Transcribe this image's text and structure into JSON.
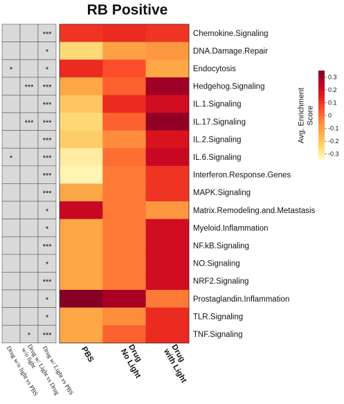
{
  "chart_data": {
    "type": "heatmap",
    "title": "RB Positive",
    "columns": [
      "PBS",
      "Drug\nNo Light",
      "Drug\nwith Light"
    ],
    "rows": [
      "Chemokine.Signaling",
      "DNA.Damage.Repair",
      "Endocytosis",
      "Hedgehog.Signaling",
      "IL.1.Signaling",
      "IL.17.Signaling",
      "IL.2.Signaling",
      "IL.6.Signaling",
      "Interferon.Response.Genes",
      "MAPK.Signaling",
      "Matrix.Remodeling.and.Metastasis",
      "Myeloid.Inflammation",
      "NF.kB.Signaling",
      "NO.Signaling",
      "NRF2.Signaling",
      "Prostaglandin.Inflammation",
      "TLR.Signaling",
      "TNF.Signaling"
    ],
    "values": [
      [
        0.1,
        0.12,
        0.1
      ],
      [
        -0.25,
        -0.1,
        -0.08
      ],
      [
        0.12,
        0.05,
        -0.12
      ],
      [
        -0.12,
        0.02,
        0.3
      ],
      [
        -0.2,
        0.12,
        0.2
      ],
      [
        -0.25,
        0.02,
        0.32
      ],
      [
        -0.22,
        -0.05,
        0.18
      ],
      [
        -0.3,
        0.0,
        0.22
      ],
      [
        -0.32,
        -0.02,
        0.1
      ],
      [
        -0.12,
        -0.02,
        0.1
      ],
      [
        0.22,
        -0.02,
        -0.08
      ],
      [
        -0.12,
        -0.02,
        0.2
      ],
      [
        -0.12,
        -0.02,
        0.2
      ],
      [
        -0.12,
        -0.02,
        0.2
      ],
      [
        -0.12,
        -0.02,
        0.2
      ],
      [
        0.34,
        0.28,
        -0.02
      ],
      [
        -0.12,
        -0.05,
        0.12
      ],
      [
        -0.12,
        0.02,
        0.12
      ]
    ],
    "comparisons": [
      "Drug w/o light vs PBS",
      "Drug w/ Light vs Drug\nw/o light",
      "Drug w/ Light vs PBS"
    ],
    "significance": [
      [
        "",
        "",
        "***"
      ],
      [
        "",
        "",
        "*"
      ],
      [
        "*",
        "",
        "*"
      ],
      [
        "",
        "***",
        "***"
      ],
      [
        "",
        "",
        "***"
      ],
      [
        "",
        "***",
        "***"
      ],
      [
        "",
        "",
        "***"
      ],
      [
        "*",
        "",
        "***"
      ],
      [
        "",
        "",
        "***"
      ],
      [
        "",
        "",
        "***"
      ],
      [
        "",
        "",
        "*"
      ],
      [
        "",
        "",
        "*"
      ],
      [
        "",
        "",
        "***"
      ],
      [
        "",
        "",
        "*"
      ],
      [
        "",
        "",
        "***"
      ],
      [
        "",
        "",
        "*"
      ],
      [
        "",
        "",
        "*"
      ],
      [
        "",
        "*",
        "***"
      ]
    ],
    "colorbar": {
      "title": "Avg. Enrichment\nScore",
      "range": [
        -0.35,
        0.35
      ],
      "ticks": [
        0.3,
        0.2,
        0.1,
        0,
        -0.1,
        -0.2,
        -0.3
      ],
      "colors": [
        "#ffffcc",
        "#fed976",
        "#feb24c",
        "#fd8d3c",
        "#fc4e2a",
        "#e31a1c",
        "#bd0026",
        "#800026"
      ]
    }
  }
}
